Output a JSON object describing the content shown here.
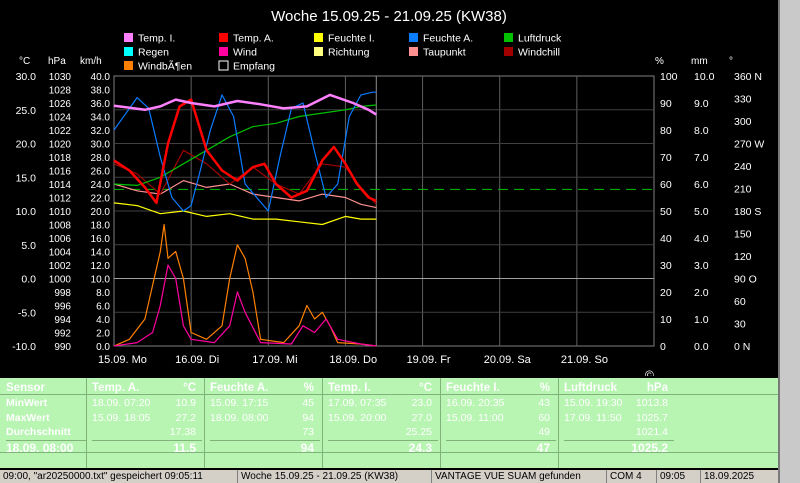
{
  "title": "Woche 15.09.25 - 21.09.25 (KW38)",
  "legend": [
    {
      "label": "Temp. I.",
      "color": "#ff80ff"
    },
    {
      "label": "Temp. A.",
      "color": "#ff0000"
    },
    {
      "label": "Feuchte I.",
      "color": "#ffff00"
    },
    {
      "label": "Feuchte A.",
      "color": "#0a7cff"
    },
    {
      "label": "Luftdruck",
      "color": "#00c000"
    },
    {
      "label": "Regen",
      "color": "#00ffff"
    },
    {
      "label": "Wind",
      "color": "#ff00a0"
    },
    {
      "label": "Richtung",
      "color": "#ffff80"
    },
    {
      "label": "Taupunkt",
      "color": "#ff9090"
    },
    {
      "label": "Windchill",
      "color": "#a00000"
    },
    {
      "label": "WindbÃ¶en",
      "color": "#ff8000"
    },
    {
      "label": "Empfang",
      "color": "#ffffff"
    }
  ],
  "axis_units": {
    "temp": "°C",
    "pressure": "hPa",
    "speed": "km/h",
    "percent": "%",
    "rain": "mm",
    "direction": "°"
  },
  "axes": {
    "temp_ticks": [
      "30.0",
      "25.0",
      "20.0",
      "15.0",
      "10.0",
      "5.0",
      "0.0",
      "-5.0",
      "-10.0"
    ],
    "pressure_ticks": [
      "1030",
      "1028",
      "1026",
      "1024",
      "1022",
      "1020",
      "1018",
      "1016",
      "1014",
      "1012",
      "1010",
      "1008",
      "1006",
      "1004",
      "1002",
      "1000",
      "998",
      "996",
      "994",
      "992",
      "990"
    ],
    "speed_ticks": [
      "40.0",
      "38.0",
      "36.0",
      "34.0",
      "32.0",
      "30.0",
      "28.0",
      "26.0",
      "24.0",
      "22.0",
      "20.0",
      "18.0",
      "16.0",
      "14.0",
      "12.0",
      "10.0",
      "8.0",
      "6.0",
      "4.0",
      "2.0",
      "0.0"
    ],
    "percent_ticks": [
      "100",
      "90",
      "80",
      "70",
      "60",
      "50",
      "40",
      "30",
      "20",
      "10",
      "0"
    ],
    "rain_ticks": [
      "10.0",
      "9.0",
      "8.0",
      "7.0",
      "6.0",
      "5.0",
      "4.0",
      "3.0",
      "2.0",
      "1.0",
      "0.0"
    ],
    "dir_ticks": [
      "360 N",
      "330",
      "300",
      "270 W",
      "240",
      "210",
      "180 S",
      "150",
      "120",
      "90 O",
      "60",
      "30",
      "0   N"
    ],
    "x_ticks": [
      "15.09. Mo",
      "16.09. Di",
      "17.09. Mi",
      "18.09. Do",
      "19.09. Fr",
      "20.09. Sa",
      "21.09. So"
    ]
  },
  "copyright_mark": "©",
  "chart_data": {
    "type": "line",
    "title": "Woche 15.09.25 - 21.09.25 (KW38)",
    "x_unit": "days from 15.09. 00:00",
    "xlim": [
      0,
      7
    ],
    "series": [
      {
        "name": "Temp. I.",
        "axis": "°C",
        "color": "#ff80ff",
        "x": [
          0,
          0.2,
          0.4,
          0.6,
          0.8,
          1.0,
          1.3,
          1.6,
          1.9,
          2.2,
          2.5,
          2.8,
          3.1,
          3.3,
          3.4
        ],
        "values": [
          25.6,
          25.3,
          25.0,
          25.5,
          26.5,
          26.0,
          25.5,
          26.3,
          25.8,
          25.2,
          25.5,
          27.2,
          26.0,
          25.0,
          24.3
        ]
      },
      {
        "name": "Temp. A.",
        "axis": "°C",
        "color": "#ff0000",
        "x": [
          0,
          0.2,
          0.4,
          0.55,
          0.7,
          0.85,
          1.0,
          1.2,
          1.4,
          1.6,
          1.8,
          1.95,
          2.1,
          2.3,
          2.5,
          2.7,
          2.85,
          3.0,
          3.15,
          3.3,
          3.4
        ],
        "values": [
          17.5,
          16.0,
          13.5,
          11.2,
          20.0,
          25.5,
          26.5,
          19.0,
          16.0,
          14.5,
          16.5,
          17.0,
          14.0,
          12.0,
          13.0,
          17.5,
          19.5,
          17.0,
          14.0,
          12.0,
          11.5
        ]
      },
      {
        "name": "Feuchte I.",
        "axis": "%",
        "color": "#ffff00",
        "x": [
          0,
          0.3,
          0.6,
          0.9,
          1.2,
          1.5,
          1.8,
          2.1,
          2.4,
          2.7,
          3.0,
          3.2,
          3.4
        ],
        "values": [
          53,
          52,
          49,
          50,
          48,
          49,
          47,
          47,
          46,
          45,
          48,
          47,
          47
        ]
      },
      {
        "name": "Feuchte A.",
        "axis": "%",
        "color": "#0a7cff",
        "x": [
          0,
          0.15,
          0.3,
          0.45,
          0.6,
          0.75,
          0.9,
          1.0,
          1.1,
          1.25,
          1.4,
          1.55,
          1.7,
          1.85,
          2.0,
          2.15,
          2.3,
          2.45,
          2.6,
          2.75,
          2.9,
          3.05,
          3.2,
          3.35,
          3.4
        ],
        "values": [
          80,
          86,
          92,
          88,
          70,
          55,
          50,
          52,
          63,
          80,
          93,
          85,
          60,
          55,
          50,
          70,
          88,
          90,
          72,
          55,
          60,
          85,
          93,
          94,
          94
        ]
      },
      {
        "name": "Luftdruck",
        "axis": "hPa",
        "color": "#00c000",
        "x": [
          0,
          0.3,
          0.6,
          0.9,
          1.2,
          1.5,
          1.8,
          2.1,
          2.4,
          2.7,
          3.0,
          3.2,
          3.4
        ],
        "values": [
          1014,
          1013.8,
          1015,
          1017,
          1019,
          1021,
          1022.5,
          1023,
          1024,
          1024.5,
          1025,
          1025.5,
          1025.7
        ]
      },
      {
        "name": "Taupunkt",
        "axis": "°C",
        "color": "#ff9090",
        "x": [
          0,
          0.3,
          0.6,
          0.9,
          1.2,
          1.5,
          1.8,
          2.1,
          2.4,
          2.7,
          3.0,
          3.2,
          3.4
        ],
        "values": [
          14.0,
          13.0,
          12.5,
          14.5,
          13.5,
          14.0,
          12.5,
          12.0,
          11.5,
          12.5,
          12.0,
          11.0,
          10.5
        ]
      },
      {
        "name": "Windchill",
        "axis": "°C",
        "color": "#a00000",
        "x": [
          0,
          0.3,
          0.6,
          0.9,
          1.2,
          1.5,
          1.8,
          2.1,
          2.4,
          2.7,
          3.0,
          3.2,
          3.4
        ],
        "values": [
          17.0,
          15.5,
          12.5,
          19.0,
          17.0,
          14.0,
          16.5,
          14.0,
          12.5,
          17.0,
          16.5,
          13.5,
          11.0
        ]
      },
      {
        "name": "Wind",
        "axis": "km/h",
        "color": "#ff00a0",
        "x": [
          0,
          0.3,
          0.5,
          0.6,
          0.7,
          0.8,
          0.9,
          1.0,
          1.3,
          1.5,
          1.6,
          1.7,
          1.9,
          2.3,
          2.45,
          2.6,
          2.75,
          2.9,
          3.2,
          3.4
        ],
        "values": [
          0,
          0.5,
          2,
          6,
          12,
          10,
          3,
          1,
          0.5,
          3,
          8,
          5,
          0.5,
          0.3,
          3,
          2,
          4,
          1,
          0.3,
          0
        ]
      },
      {
        "name": "WindbÃ¶en",
        "axis": "km/h",
        "color": "#ff8000",
        "x": [
          0,
          0.2,
          0.4,
          0.5,
          0.6,
          0.65,
          0.7,
          0.8,
          0.9,
          1.0,
          1.2,
          1.4,
          1.5,
          1.6,
          1.7,
          1.8,
          1.9,
          2.2,
          2.4,
          2.5,
          2.6,
          2.7,
          2.8,
          2.9,
          3.2,
          3.4
        ],
        "values": [
          0,
          1,
          4,
          9,
          14,
          18,
          13,
          14,
          10,
          2,
          1,
          3,
          10,
          15,
          13,
          8,
          1,
          0.5,
          3,
          6,
          4,
          5,
          3,
          0.5,
          0.3,
          0
        ]
      }
    ],
    "reference_lines": [
      {
        "axis": "%",
        "value": 58,
        "style": "dashed",
        "color": "#00c000"
      }
    ]
  },
  "summary": {
    "columns": [
      {
        "header": "Sensor",
        "unit": "",
        "rows": [
          "MinWert",
          "MaxWert",
          "Durchschnitt",
          "18.09.  08:00"
        ]
      },
      {
        "header": "Temp. A.",
        "unit": "°C",
        "rows": [
          {
            "t": "18.09.  07:20",
            "v": "10.9"
          },
          {
            "t": "15.09.  18:05",
            "v": "27.2"
          },
          {
            "t": "",
            "v": "17.38"
          },
          {
            "t": "",
            "v": "11.5"
          }
        ]
      },
      {
        "header": "Feuchte A.",
        "unit": "%",
        "rows": [
          {
            "t": "15.09.  17:15",
            "v": "45"
          },
          {
            "t": "18.09.  08:00",
            "v": "94"
          },
          {
            "t": "",
            "v": "73"
          },
          {
            "t": "",
            "v": "94"
          }
        ]
      },
      {
        "header": "Temp. I.",
        "unit": "°C",
        "rows": [
          {
            "t": "17.09.  07:35",
            "v": "23.0"
          },
          {
            "t": "15.09.  20:00",
            "v": "27.0"
          },
          {
            "t": "",
            "v": "25.25"
          },
          {
            "t": "",
            "v": "24.3"
          }
        ]
      },
      {
        "header": "Feuchte I.",
        "unit": "%",
        "rows": [
          {
            "t": "16.09.  20:35",
            "v": "43"
          },
          {
            "t": "15.09.  11:00",
            "v": "60"
          },
          {
            "t": "",
            "v": "49"
          },
          {
            "t": "",
            "v": "47"
          }
        ]
      },
      {
        "header": "Luftdruck",
        "unit": "hPa",
        "rows": [
          {
            "t": "15.09.  19:30",
            "v": "1013.8"
          },
          {
            "t": "17.09.  11:50",
            "v": "1025.7"
          },
          {
            "t": "",
            "v": "1021.4"
          },
          {
            "t": "",
            "v": "1025.2"
          }
        ]
      }
    ]
  },
  "statusbar": [
    "09:00, \"ar20250000.txt\" gespeichert  09:05:11",
    "Woche 15.09.25 - 21.09.25 (KW38)",
    "VANTAGE VUE SUAM gefunden",
    "COM 4",
    "09:05",
    "18.09.2025"
  ]
}
